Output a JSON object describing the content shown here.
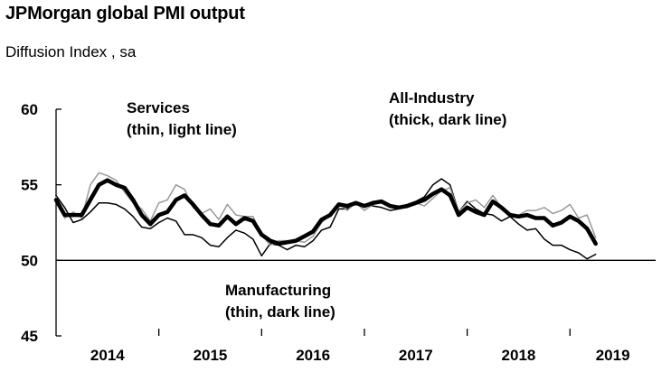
{
  "chart_data": {
    "type": "line",
    "title": "JPMorgan global PMI output",
    "subtitle": "Diffusion Index , sa",
    "ylim": [
      45,
      60
    ],
    "yticks": [
      45,
      50,
      55,
      60
    ],
    "reference_line": 50,
    "x_axis": {
      "start": "2014-01",
      "end": "2019-04",
      "year_labels": [
        "2014",
        "2015",
        "2016",
        "2017",
        "2018",
        "2019"
      ]
    },
    "series": [
      {
        "key": "all_industry",
        "color": "#000000",
        "style": "thick",
        "x": [
          "2014-01",
          "2014-02",
          "2014-03",
          "2014-04",
          "2014-05",
          "2014-06",
          "2014-07",
          "2014-08",
          "2014-09",
          "2014-10",
          "2014-11",
          "2014-12",
          "2015-01",
          "2015-02",
          "2015-03",
          "2015-04",
          "2015-05",
          "2015-06",
          "2015-07",
          "2015-08",
          "2015-09",
          "2015-10",
          "2015-11",
          "2015-12",
          "2016-01",
          "2016-02",
          "2016-03",
          "2016-04",
          "2016-05",
          "2016-06",
          "2016-07",
          "2016-08",
          "2016-09",
          "2016-10",
          "2016-11",
          "2016-12",
          "2017-01",
          "2017-02",
          "2017-03",
          "2017-04",
          "2017-05",
          "2017-06",
          "2017-07",
          "2017-08",
          "2017-09",
          "2017-10",
          "2017-11",
          "2017-12",
          "2018-01",
          "2018-02",
          "2018-03",
          "2018-04",
          "2018-05",
          "2018-06",
          "2018-07",
          "2018-08",
          "2018-09",
          "2018-10",
          "2018-11",
          "2018-12",
          "2019-01",
          "2019-02",
          "2019-03",
          "2019-04"
        ],
        "values": [
          54.0,
          53.0,
          53.0,
          53.0,
          54.0,
          55.0,
          55.3,
          55.0,
          54.8,
          54.0,
          53.0,
          52.4,
          53.0,
          53.2,
          54.0,
          54.3,
          53.7,
          53.0,
          52.4,
          52.3,
          52.9,
          52.4,
          52.8,
          52.6,
          51.7,
          51.3,
          51.1,
          51.2,
          51.3,
          51.6,
          51.9,
          52.7,
          53.0,
          53.7,
          53.6,
          53.8,
          53.6,
          53.8,
          53.9,
          53.6,
          53.5,
          53.6,
          53.8,
          54.0,
          54.4,
          54.7,
          54.3,
          53.0,
          53.5,
          53.2,
          53.0,
          53.9,
          53.5,
          53.0,
          52.9,
          53.0,
          52.8,
          52.8,
          52.3,
          52.5,
          52.9,
          52.6,
          52.1,
          51.1
        ]
      },
      {
        "key": "services",
        "color": "#999999",
        "style": "thin",
        "x": [
          "2014-01",
          "2014-02",
          "2014-03",
          "2014-04",
          "2014-05",
          "2014-06",
          "2014-07",
          "2014-08",
          "2014-09",
          "2014-10",
          "2014-11",
          "2014-12",
          "2015-01",
          "2015-02",
          "2015-03",
          "2015-04",
          "2015-05",
          "2015-06",
          "2015-07",
          "2015-08",
          "2015-09",
          "2015-10",
          "2015-11",
          "2015-12",
          "2016-01",
          "2016-02",
          "2016-03",
          "2016-04",
          "2016-05",
          "2016-06",
          "2016-07",
          "2016-08",
          "2016-09",
          "2016-10",
          "2016-11",
          "2016-12",
          "2017-01",
          "2017-02",
          "2017-03",
          "2017-04",
          "2017-05",
          "2017-06",
          "2017-07",
          "2017-08",
          "2017-09",
          "2017-10",
          "2017-11",
          "2017-12",
          "2018-01",
          "2018-02",
          "2018-03",
          "2018-04",
          "2018-05",
          "2018-06",
          "2018-07",
          "2018-08",
          "2018-09",
          "2018-10",
          "2018-11",
          "2018-12",
          "2019-01",
          "2019-02",
          "2019-03",
          "2019-04"
        ],
        "values": [
          54.2,
          52.8,
          53.2,
          52.8,
          55.0,
          55.8,
          55.6,
          55.3,
          54.5,
          53.8,
          53.4,
          52.6,
          53.8,
          54.0,
          55.0,
          54.7,
          53.5,
          53.1,
          53.4,
          52.7,
          53.7,
          53.0,
          52.9,
          52.9,
          51.7,
          51.0,
          51.3,
          51.3,
          51.3,
          51.2,
          51.6,
          52.5,
          53.0,
          53.8,
          53.3,
          53.8,
          53.3,
          53.7,
          53.8,
          53.6,
          53.5,
          53.7,
          53.8,
          53.6,
          54.1,
          54.6,
          54.8,
          53.2,
          53.8,
          54.0,
          53.5,
          54.3,
          53.5,
          53.1,
          53.0,
          53.3,
          53.3,
          53.5,
          53.1,
          53.3,
          53.7,
          52.8,
          53.0,
          51.5
        ]
      },
      {
        "key": "manufacturing",
        "color": "#000000",
        "style": "thin",
        "x": [
          "2014-01",
          "2014-02",
          "2014-03",
          "2014-04",
          "2014-05",
          "2014-06",
          "2014-07",
          "2014-08",
          "2014-09",
          "2014-10",
          "2014-11",
          "2014-12",
          "2015-01",
          "2015-02",
          "2015-03",
          "2015-04",
          "2015-05",
          "2015-06",
          "2015-07",
          "2015-08",
          "2015-09",
          "2015-10",
          "2015-11",
          "2015-12",
          "2016-01",
          "2016-02",
          "2016-03",
          "2016-04",
          "2016-05",
          "2016-06",
          "2016-07",
          "2016-08",
          "2016-09",
          "2016-10",
          "2016-11",
          "2016-12",
          "2017-01",
          "2017-02",
          "2017-03",
          "2017-04",
          "2017-05",
          "2017-06",
          "2017-07",
          "2017-08",
          "2017-09",
          "2017-10",
          "2017-11",
          "2017-12",
          "2018-01",
          "2018-02",
          "2018-03",
          "2018-04",
          "2018-05",
          "2018-06",
          "2018-07",
          "2018-08",
          "2018-09",
          "2018-10",
          "2018-11",
          "2018-12",
          "2019-01",
          "2019-02",
          "2019-03",
          "2019-04"
        ],
        "values": [
          54.3,
          53.5,
          52.5,
          52.7,
          53.2,
          53.8,
          53.8,
          53.7,
          53.4,
          52.9,
          52.2,
          52.1,
          52.5,
          52.8,
          52.6,
          51.7,
          51.7,
          51.5,
          51.0,
          50.9,
          51.5,
          52.0,
          51.8,
          51.4,
          50.3,
          51.1,
          51.0,
          50.7,
          51.0,
          50.9,
          51.3,
          52.0,
          52.2,
          53.4,
          53.4,
          53.8,
          53.7,
          53.6,
          53.5,
          53.3,
          53.4,
          53.7,
          53.9,
          54.2,
          55.0,
          55.4,
          55.0,
          53.2,
          53.9,
          53.4,
          53.1,
          53.0,
          52.6,
          52.9,
          52.4,
          52.0,
          52.1,
          51.4,
          51.0,
          51.0,
          50.7,
          50.5,
          50.1,
          50.4
        ]
      }
    ],
    "annotations": [
      {
        "key": "services",
        "line1": "Services",
        "line2": "(thin, light line)"
      },
      {
        "key": "all_industry",
        "line1": "All-Industry",
        "line2": "(thick, dark line)"
      },
      {
        "key": "manufacturing",
        "line1": "Manufacturing",
        "line2": "(thin, dark line)"
      }
    ]
  }
}
